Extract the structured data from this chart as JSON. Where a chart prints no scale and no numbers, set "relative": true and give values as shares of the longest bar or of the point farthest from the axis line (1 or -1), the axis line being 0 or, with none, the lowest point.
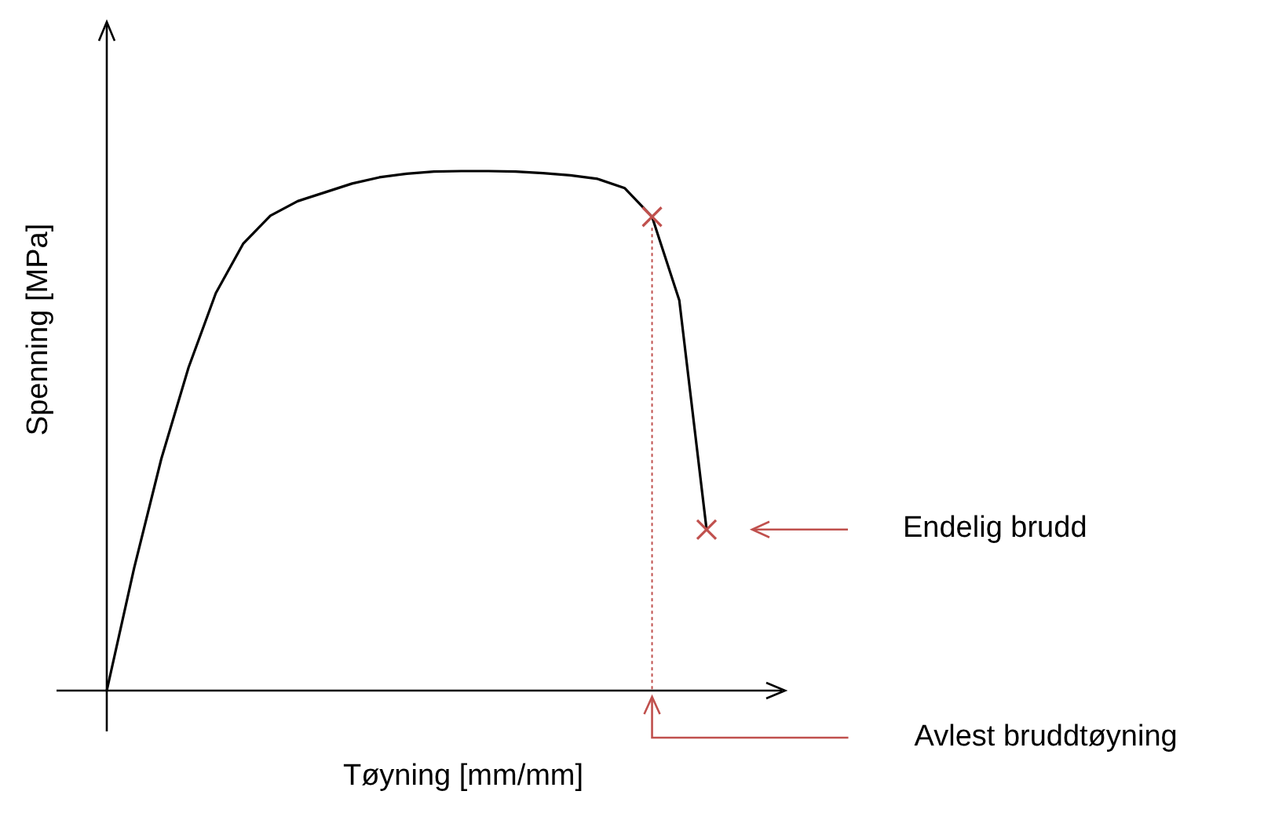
{
  "chart_data": {
    "type": "line",
    "relative": true,
    "xlabel": "Tøyning [mm/mm]",
    "ylabel": "Spenning [MPa]",
    "grid": false,
    "marker": "none",
    "categories": [
      null,
      null,
      null,
      null,
      null,
      null,
      null,
      null,
      null,
      null,
      null,
      null,
      null,
      null,
      null,
      null,
      null,
      null,
      null,
      null,
      null,
      null,
      null
    ],
    "series": [
      {
        "color": "#000000",
        "values": [
          0,
          0.235,
          0.446,
          0.622,
          0.765,
          0.86,
          0.914,
          0.942,
          0.959,
          0.976,
          0.988,
          0.995,
          0.999,
          1.0,
          1.0,
          0.999,
          0.996,
          0.992,
          0.985,
          0.967,
          0.912,
          0.751,
          0.31
        ]
      }
    ],
    "annotations": [
      "Endelig brudd",
      "Avlest bruddtøyning"
    ]
  }
}
